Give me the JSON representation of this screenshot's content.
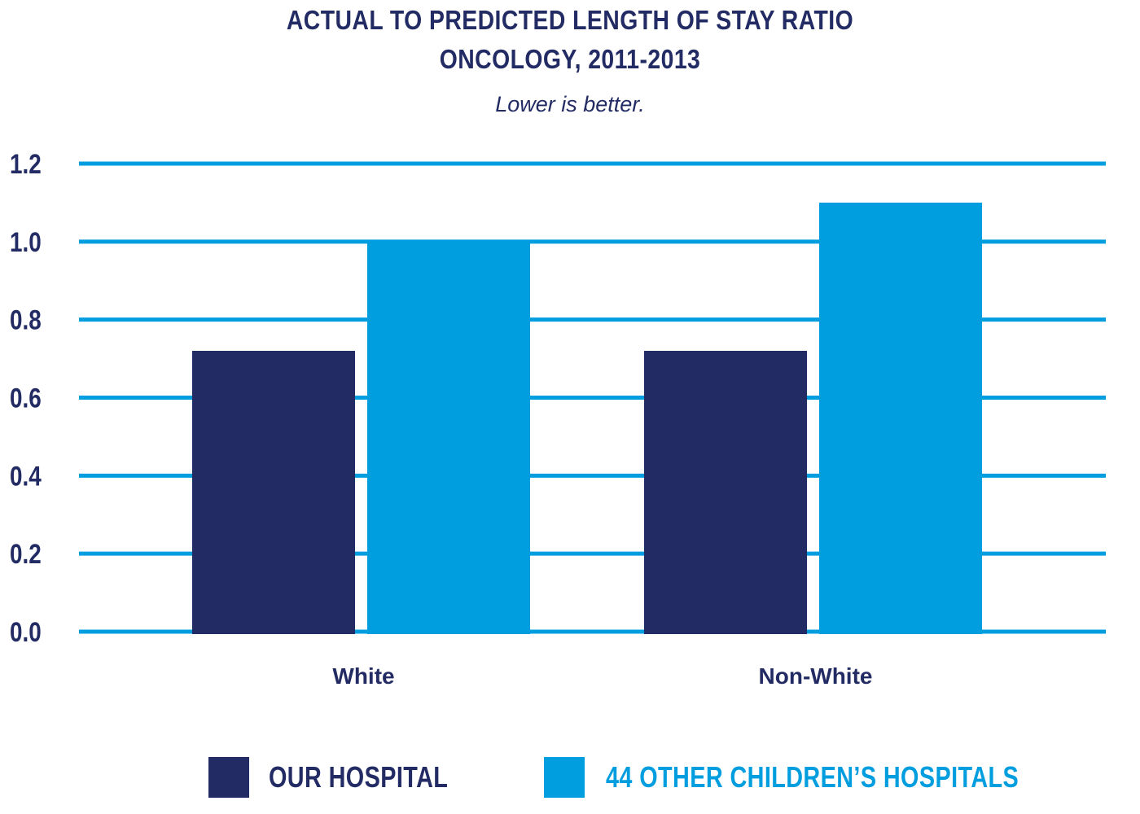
{
  "chart_data": {
    "type": "bar",
    "title": "ACTUAL TO PREDICTED LENGTH OF STAY RATIO",
    "title_line2": "ONCOLOGY, 2011-2013",
    "subtitle": "Lower is better.",
    "categories": [
      "White",
      "Non-White"
    ],
    "series": [
      {
        "name": "OUR HOSPITAL",
        "values": [
          0.72,
          0.72
        ],
        "color": "#222b63"
      },
      {
        "name": "44 OTHER CHILDREN’S HOSPITALS",
        "values": [
          1.0,
          1.1
        ],
        "color": "#009ddf"
      }
    ],
    "yticks": [
      "0.0",
      "0.2",
      "0.4",
      "0.6",
      "0.8",
      "1.0",
      "1.2"
    ],
    "ylim": [
      0,
      1.2
    ],
    "grid": true,
    "legend_position": "bottom",
    "gridline_color": "#009ddf",
    "text_color": "#222b63"
  }
}
